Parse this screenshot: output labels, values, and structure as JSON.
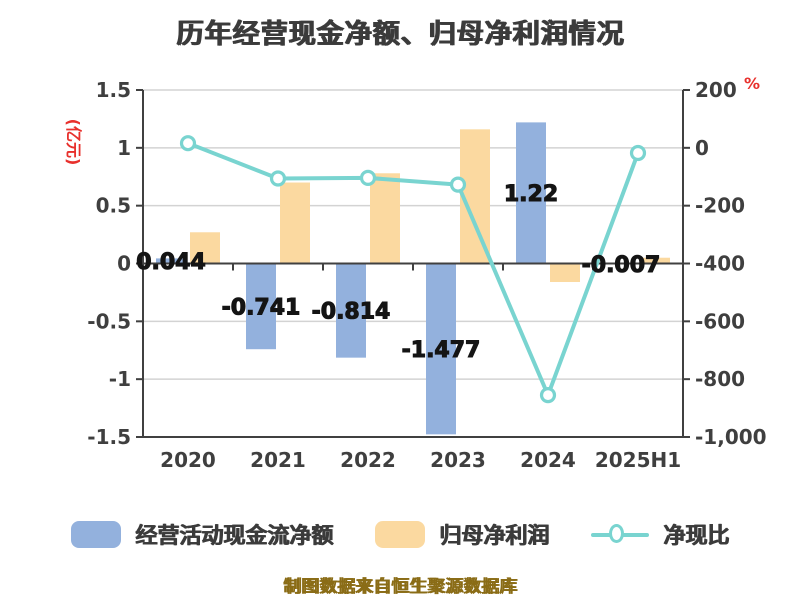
{
  "title": "历年经营现金净额、归母净利润情况",
  "footer": "制图数据来自恒生聚源数据库",
  "colors": {
    "bar_ocf": "#93b1dd",
    "bar_profit": "#fbd9a0",
    "line_ratio": "#79d4d0",
    "marker_fill": "#ffffff",
    "axis_text": "#3f3f3f",
    "title_text": "#3b3b3b",
    "axis_unit_red": "#e8302c",
    "gridline": "#d3d3d3",
    "axis_line_dark": "#404040",
    "data_label": "#141414",
    "footer_text": "#8a6c16"
  },
  "chart_data": {
    "type": "bar",
    "note": "combo chart: two bar series on left axis (亿元), one line series on right axis (%)",
    "categories": [
      "2020",
      "2021",
      "2022",
      "2023",
      "2024",
      "2025H1"
    ],
    "series": [
      {
        "name": "经营活动现金流净额",
        "type": "bar",
        "axis": "left",
        "values": [
          0.044,
          -0.741,
          -0.814,
          -1.477,
          1.22,
          -0.007
        ],
        "point_labels": [
          "0.044",
          "-0.741",
          "-0.814",
          "-1.477",
          "1.22",
          "-0.007"
        ]
      },
      {
        "name": "归母净利润",
        "type": "bar",
        "axis": "left",
        "values": [
          0.27,
          0.7,
          0.78,
          1.16,
          -0.16,
          0.05
        ],
        "point_labels": []
      },
      {
        "name": "净现比",
        "type": "line",
        "axis": "right",
        "values": [
          16,
          -106,
          -104,
          -127,
          -855,
          -18
        ],
        "point_labels": []
      }
    ],
    "left_axis": {
      "label": "(亿元)",
      "min": -1.5,
      "max": 1.5,
      "tick_labels": [
        "1.5",
        "1",
        "0.5",
        "0",
        "-0.5",
        "-1",
        "-1.5"
      ]
    },
    "right_axis": {
      "label": "%",
      "min": -1000,
      "max": 200,
      "tick_labels": [
        "200",
        "0",
        "-200",
        "-400",
        "-600",
        "-800",
        "-1,000"
      ]
    },
    "grid": true,
    "legend_position": "bottom"
  }
}
